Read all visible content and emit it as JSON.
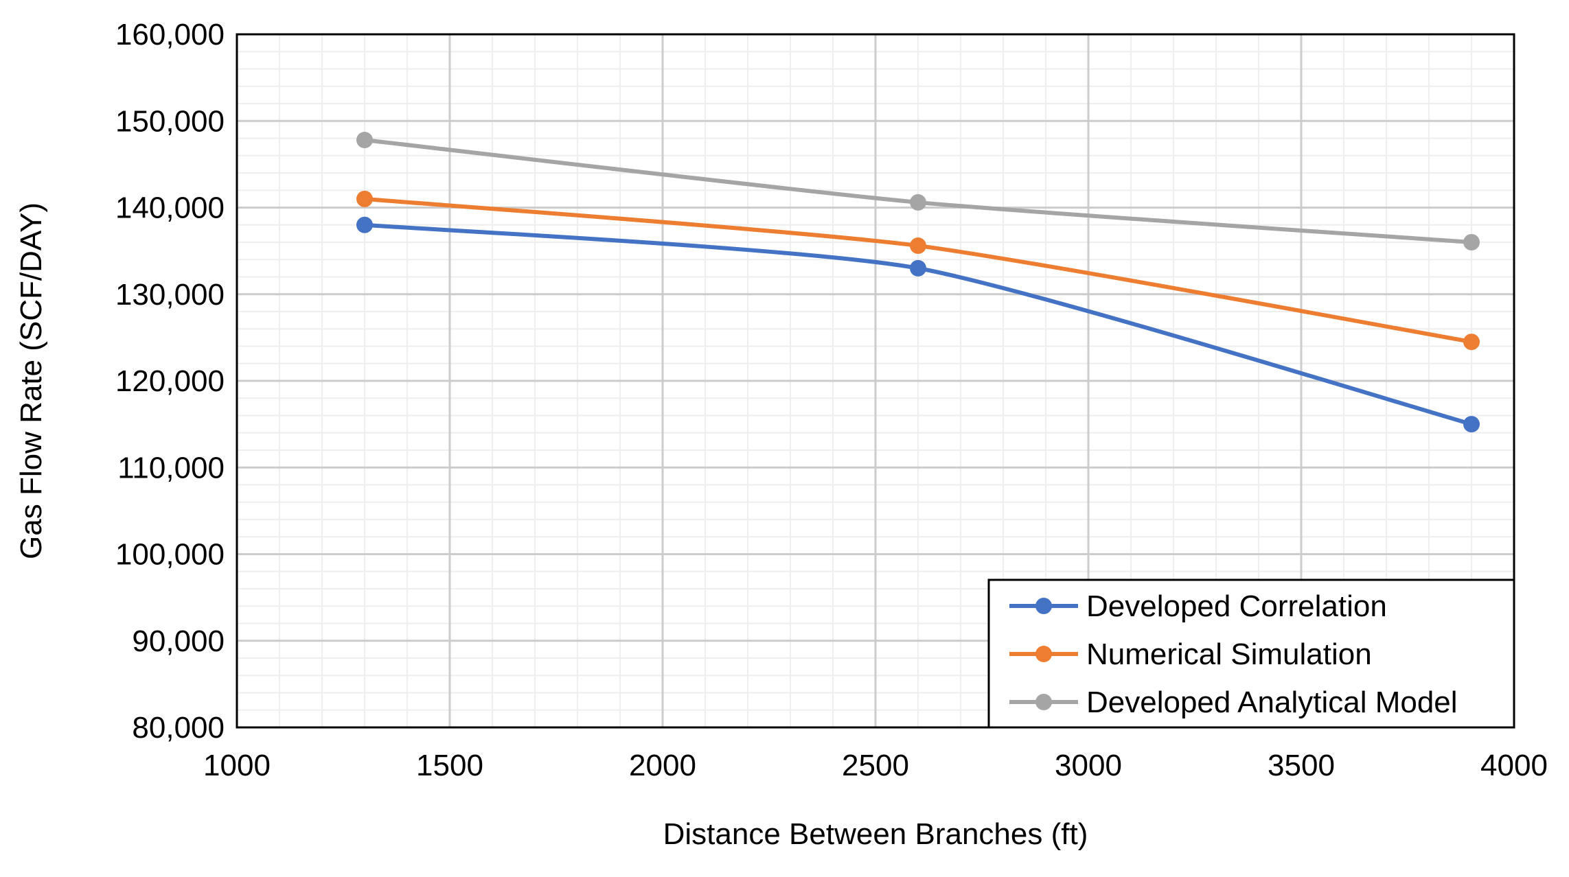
{
  "chart_data": {
    "type": "line",
    "title": "",
    "xlabel": "Distance Between Branches (ft)",
    "ylabel": "Gas Flow Rate (SCF/DAY)",
    "xlim": [
      1000,
      4000
    ],
    "ylim": [
      80000,
      160000
    ],
    "x_ticks": [
      1000,
      1500,
      2000,
      2500,
      3000,
      3500,
      4000
    ],
    "x_tick_labels": [
      "1000",
      "1500",
      "2000",
      "2500",
      "3000",
      "3500",
      "4000"
    ],
    "y_ticks": [
      80000,
      90000,
      100000,
      110000,
      120000,
      130000,
      140000,
      150000,
      160000
    ],
    "y_tick_labels": [
      "80,000",
      "90,000",
      "100,000",
      "110,000",
      "120,000",
      "130,000",
      "140,000",
      "150,000",
      "160,000"
    ],
    "grid": true,
    "smooth": true,
    "legend_position": "bottom-right",
    "series": [
      {
        "name": "Developed Correlation",
        "color": "#4472C4",
        "x": [
          1300,
          2600,
          3900
        ],
        "y": [
          138000,
          133000,
          115000
        ]
      },
      {
        "name": "Numerical Simulation",
        "color": "#ED7D31",
        "x": [
          1300,
          2600,
          3900
        ],
        "y": [
          141000,
          135600,
          124500
        ]
      },
      {
        "name": "Developed Analytical Model",
        "color": "#A5A5A5",
        "x": [
          1300,
          2600,
          3900
        ],
        "y": [
          147800,
          140600,
          136000
        ]
      }
    ]
  }
}
